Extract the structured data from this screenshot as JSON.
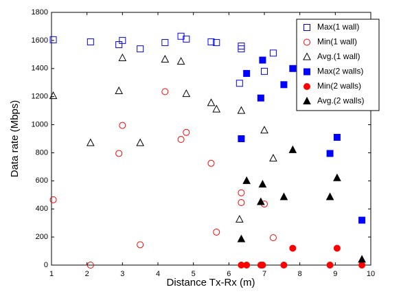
{
  "chart_data": {
    "type": "scatter",
    "xlabel": "Distance Tx-Rx (m)",
    "ylabel": "Data rate (Mbps)",
    "xlim": [
      1,
      10
    ],
    "ylim": [
      0,
      1800
    ],
    "xticks": [
      1,
      2,
      3,
      4,
      5,
      6,
      7,
      8,
      9,
      10
    ],
    "yticks": [
      0,
      200,
      400,
      600,
      800,
      1000,
      1200,
      1400,
      1600,
      1800
    ],
    "grid": false,
    "legend_position": "upper-right",
    "series": [
      {
        "name": "Max(1 wall)",
        "color": "#0000ff",
        "marker": "square",
        "filled": false,
        "x": [
          1.05,
          2.1,
          2.9,
          3,
          3.5,
          4.2,
          4.65,
          4.8,
          5.5,
          5.65,
          6.35,
          6.35,
          6.3,
          7,
          7.25
        ],
        "values": [
          1605,
          1590,
          1570,
          1600,
          1540,
          1585,
          1630,
          1610,
          1590,
          1585,
          1560,
          1540,
          1295,
          1380,
          1510
        ]
      },
      {
        "name": "Min(1 wall)",
        "color": "#ff0000",
        "marker": "circle",
        "filled": false,
        "x": [
          1.05,
          2.1,
          2.9,
          3,
          3.5,
          4.2,
          4.65,
          4.8,
          5.5,
          5.65,
          6.35,
          6.35,
          7,
          7.25
        ],
        "values": [
          465,
          0,
          795,
          995,
          145,
          1235,
          895,
          945,
          725,
          235,
          515,
          445,
          435,
          195
        ]
      },
      {
        "name": "Avg.(1 wall)",
        "color": "#000000",
        "marker": "triangle",
        "filled": false,
        "x": [
          1.05,
          2.1,
          2.9,
          3,
          3.5,
          4.2,
          4.65,
          4.8,
          5.5,
          5.65,
          6.35,
          6.3,
          7,
          7.25
        ],
        "values": [
          1205,
          870,
          1240,
          1475,
          870,
          1465,
          1450,
          1220,
          1155,
          1110,
          1100,
          325,
          960,
          760
        ]
      },
      {
        "name": "Max(2 walls)",
        "color": "#0000ff",
        "marker": "square",
        "filled": true,
        "x": [
          6.35,
          6.5,
          6.9,
          6.95,
          7.55,
          7.8,
          8.85,
          9.05,
          9.75
        ],
        "values": [
          900,
          1365,
          1190,
          1460,
          1285,
          1400,
          795,
          910,
          320
        ]
      },
      {
        "name": "Min(2 walls)",
        "color": "#ff0000",
        "marker": "circle",
        "filled": true,
        "x": [
          6.35,
          6.5,
          6.9,
          6.95,
          7.55,
          7.8,
          8.85,
          9.05,
          9.75
        ],
        "values": [
          0,
          0,
          0,
          0,
          0,
          120,
          0,
          120,
          0
        ]
      },
      {
        "name": "Avg.(2 walls)",
        "color": "#000000",
        "marker": "triangle",
        "filled": true,
        "x": [
          6.35,
          6.5,
          6.9,
          6.95,
          7.55,
          7.8,
          8.85,
          9.05,
          9.75
        ],
        "values": [
          185,
          600,
          450,
          575,
          485,
          820,
          485,
          620,
          40
        ]
      }
    ]
  }
}
